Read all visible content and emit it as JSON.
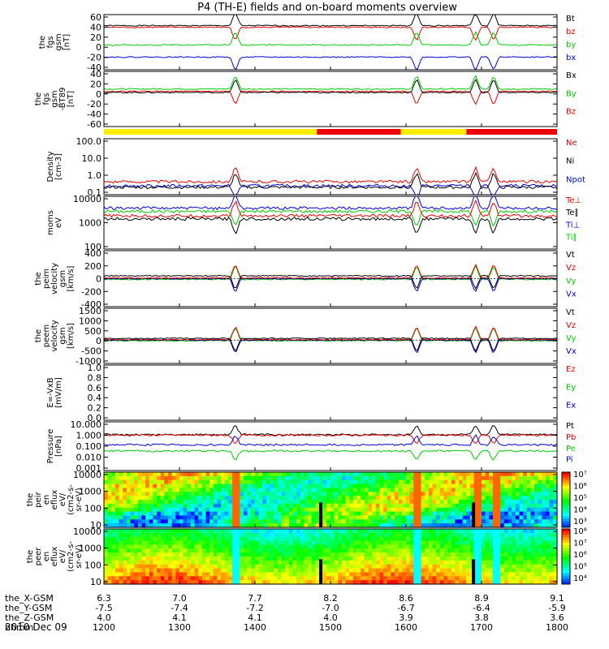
{
  "title": "P4 (TH-E) fields and on-board moments overview",
  "date": "2010 Dec 09",
  "colors": {
    "black": "#000000",
    "red": "#ee0000",
    "green": "#00cc00",
    "blue": "#0000dd",
    "yellow": "#ffee00"
  },
  "chart_data": {
    "type": "line",
    "xlabel_rows": [
      {
        "label": "the_X-GSM",
        "values": [
          "6.3",
          "7.0",
          "7.7",
          "8.2",
          "8.6",
          "8.9",
          "9.1"
        ]
      },
      {
        "label": "the_Y-GSM",
        "values": [
          "-7.5",
          "-7.4",
          "-7.2",
          "-7.0",
          "-6.7",
          "-6.4",
          "-5.9"
        ]
      },
      {
        "label": "the_Z-GSM",
        "values": [
          "4.0",
          "4.1",
          "4.1",
          "4.0",
          "3.9",
          "3.8",
          "3.6"
        ]
      },
      {
        "label": "hhmm",
        "values": [
          "1200",
          "1300",
          "1400",
          "1500",
          "1600",
          "1700",
          "1800"
        ]
      }
    ],
    "x_range_hhmm": [
      "1200",
      "1800"
    ],
    "mode_bar": [
      {
        "from": 0.0,
        "to": 0.47,
        "color": "yellow"
      },
      {
        "from": 0.47,
        "to": 0.655,
        "color": "red"
      },
      {
        "from": 0.655,
        "to": 0.8,
        "color": "yellow"
      },
      {
        "from": 0.8,
        "to": 1.0,
        "color": "red"
      }
    ],
    "panels": [
      {
        "ylabel": [
          "the",
          "fgs",
          "gsm",
          "[nT]"
        ],
        "ticks": [
          "60",
          "40",
          "20",
          "0",
          "-20",
          "-40"
        ],
        "ylim": [
          -40,
          60
        ],
        "scale": "linear",
        "legend": [
          {
            "name": "Bt",
            "color": "black"
          },
          {
            "name": "bz",
            "color": "red"
          },
          {
            "name": "by",
            "color": "green"
          },
          {
            "name": "bx",
            "color": "blue"
          }
        ],
        "series": [
          {
            "color": "black",
            "base": 40
          },
          {
            "color": "red",
            "base": 37
          },
          {
            "color": "green",
            "base": 5
          },
          {
            "color": "blue",
            "base": -17
          }
        ]
      },
      {
        "ylabel": [
          "the",
          "fgs",
          "gsm",
          "-BT89",
          "[nT]"
        ],
        "ticks": [
          "40",
          "20",
          "0",
          "-20",
          "-40",
          "-60"
        ],
        "ylim": [
          -70,
          40
        ],
        "scale": "linear",
        "legend": [
          {
            "name": "Bx",
            "color": "black"
          },
          {
            "name": "By",
            "color": "green"
          },
          {
            "name": "Bz",
            "color": "red"
          }
        ],
        "series": [
          {
            "color": "green",
            "base": 5
          },
          {
            "color": "red",
            "base": 0
          },
          {
            "color": "black",
            "base": -2
          }
        ]
      },
      {
        "ylabel": [
          "Density",
          "[cm-3]"
        ],
        "ticks": [
          "100.0",
          "10.0",
          "1.0",
          "0.1"
        ],
        "ylim": [
          0.1,
          100
        ],
        "scale": "log",
        "legend": [
          {
            "name": "Ne",
            "color": "red"
          },
          {
            "name": "Ni",
            "color": "black"
          },
          {
            "name": "Npot",
            "color": "blue"
          }
        ],
        "series": [
          {
            "color": "red",
            "base": 0.5
          },
          {
            "color": "blue",
            "base": 0.3
          },
          {
            "color": "black",
            "base": 0.25
          }
        ]
      },
      {
        "ylabel": [
          "moms",
          "eV"
        ],
        "ticks": [
          "10000",
          "1000",
          "100"
        ],
        "ylim": [
          20,
          10000
        ],
        "scale": "log",
        "legend": [
          {
            "name": "Te⊥",
            "color": "red"
          },
          {
            "name": "Te∥",
            "color": "black"
          },
          {
            "name": "Ti⊥",
            "color": "blue"
          },
          {
            "name": "Ti∥",
            "color": "green"
          }
        ],
        "series": [
          {
            "color": "blue",
            "base": 2500
          },
          {
            "color": "green",
            "base": 1700
          },
          {
            "color": "red",
            "base": 1000
          },
          {
            "color": "black",
            "base": 700
          }
        ]
      },
      {
        "ylabel": [
          "the",
          "peim",
          "velocity",
          "gsm",
          "[km/s]"
        ],
        "ticks": [
          "400",
          "200",
          "0",
          "-200",
          "-400"
        ],
        "ylim": [
          -400,
          400
        ],
        "scale": "linear",
        "legend": [
          {
            "name": "Vt",
            "color": "black"
          },
          {
            "name": "Vz",
            "color": "red"
          },
          {
            "name": "Vy",
            "color": "green"
          },
          {
            "name": "Vx",
            "color": "blue"
          }
        ],
        "series": [
          {
            "color": "green",
            "base": -10
          },
          {
            "color": "blue",
            "base": 0
          },
          {
            "color": "red",
            "base": 10
          },
          {
            "color": "black",
            "base": 40
          }
        ]
      },
      {
        "ylabel": [
          "the",
          "peem",
          "velocity",
          "gsm",
          "[km/s]"
        ],
        "ticks": [
          "1500",
          "1000",
          "500",
          "0",
          "-500",
          "-1000"
        ],
        "ylim": [
          -1100,
          1500
        ],
        "scale": "linear",
        "legend": [
          {
            "name": "Vt",
            "color": "black"
          },
          {
            "name": "Vz",
            "color": "red"
          },
          {
            "name": "Vy",
            "color": "green"
          },
          {
            "name": "Vx",
            "color": "blue"
          }
        ],
        "series": [
          {
            "color": "green",
            "base": -30
          },
          {
            "color": "blue",
            "base": 0
          },
          {
            "color": "red",
            "base": 20
          },
          {
            "color": "black",
            "base": 80
          }
        ]
      },
      {
        "ylabel": [
          "E=-VxB",
          "[mV/m]"
        ],
        "ticks": [
          "1.0",
          "0.8",
          "0.6",
          "0.4",
          "0.2",
          "0.0"
        ],
        "ylim": [
          0,
          1
        ],
        "scale": "linear",
        "legend": [
          {
            "name": "Ez",
            "color": "red"
          },
          {
            "name": "Ey",
            "color": "green"
          },
          {
            "name": "Ex",
            "color": "blue"
          }
        ],
        "series": []
      },
      {
        "ylabel": [
          "Pressure",
          "[nPa]"
        ],
        "ticks": [
          "10.000",
          "1.000",
          "0.100",
          "0.010",
          "0.001"
        ],
        "ylim": [
          0.001,
          10
        ],
        "scale": "log",
        "legend": [
          {
            "name": "Pt",
            "color": "black"
          },
          {
            "name": "Pb",
            "color": "red"
          },
          {
            "name": "Pe",
            "color": "green"
          },
          {
            "name": "Pi",
            "color": "blue"
          }
        ],
        "series": [
          {
            "color": "black",
            "base": 0.9
          },
          {
            "color": "red",
            "base": 0.8
          },
          {
            "color": "blue",
            "base": 0.13
          },
          {
            "color": "green",
            "base": 0.04
          }
        ]
      },
      {
        "ylabel": [
          "the",
          "peir",
          "en",
          "eflux",
          "eV/",
          "(cm2-s-",
          "sr-eV)"
        ],
        "ticks": [
          "10000",
          "1000",
          "100",
          "10"
        ],
        "ylim": [
          7,
          20000
        ],
        "scale": "log",
        "spectrogram": true,
        "colorbar": [
          "10⁷",
          "10⁶",
          "10⁵",
          "10⁴",
          "10³"
        ]
      },
      {
        "ylabel": [
          "the",
          "peer",
          "en",
          "eflux",
          "eV/",
          "(cm2-s-",
          "sr-eV)"
        ],
        "ticks": [
          "10000",
          "1000",
          "100",
          "10"
        ],
        "ylim": [
          7,
          20000
        ],
        "scale": "log",
        "spectrogram": true,
        "colorbar": [
          "10⁸",
          "10⁷",
          "10⁶",
          "10⁵",
          "10⁴"
        ]
      }
    ]
  }
}
